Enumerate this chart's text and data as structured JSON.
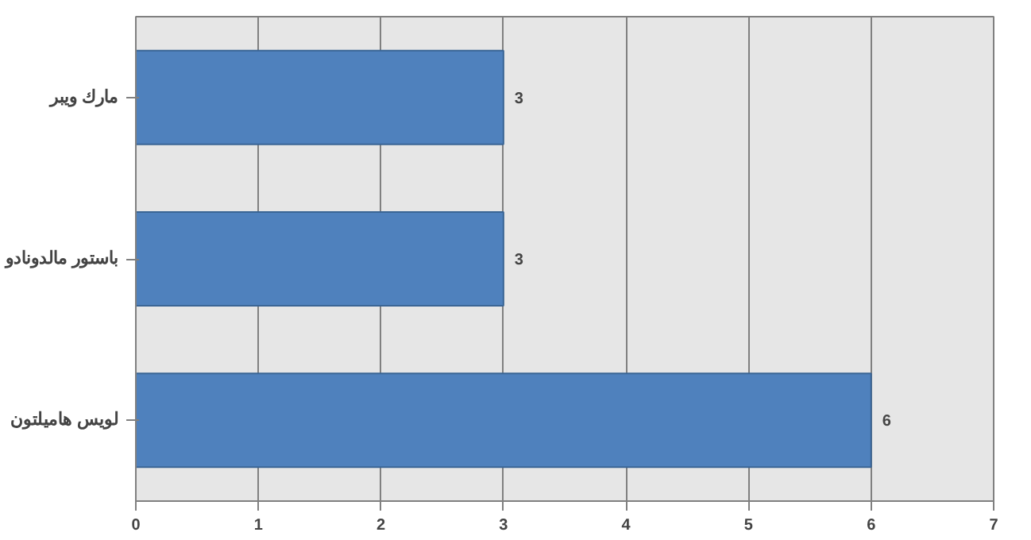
{
  "chart_data": {
    "type": "bar",
    "orientation": "horizontal",
    "categories": [
      "مارك ويبر",
      "باستور مالدونادو",
      "لويس هاميلتون"
    ],
    "values": [
      3,
      3,
      6
    ],
    "color": "#4f81bd",
    "xlim": [
      0,
      7
    ],
    "xticks": [
      0,
      1,
      2,
      3,
      4,
      5,
      6,
      7
    ],
    "grid": "x",
    "data_labels": true
  }
}
